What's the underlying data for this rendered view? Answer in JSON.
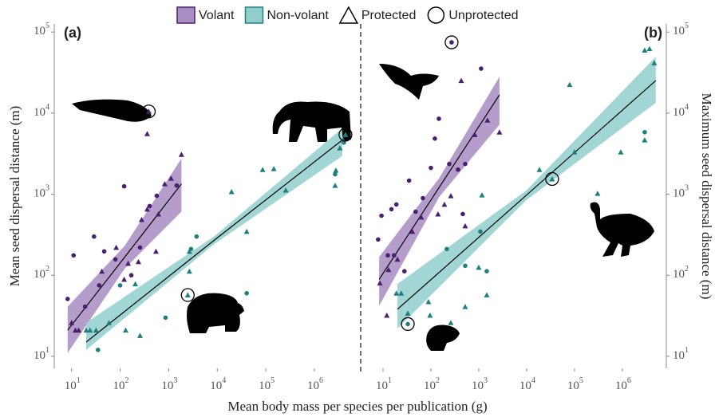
{
  "legend": [
    {
      "name": "Volant",
      "color": "#4b1f6f",
      "ribbon_color": "#a88cc2",
      "kind": "fill"
    },
    {
      "name": "Non-volant",
      "color": "#1f7f80",
      "ribbon_color": "#92cfcc",
      "kind": "fill"
    },
    {
      "name": "Protected",
      "kind": "triangle"
    },
    {
      "name": "Unprotected",
      "kind": "circle"
    }
  ],
  "x_label": "Mean body mass per species per publication (g)",
  "chart_data": [
    {
      "type": "scatter",
      "panel_label": "(a)",
      "y_label": "Mean seed dispersal distance (m)",
      "y_axis_side": "left",
      "x_scale": "log",
      "y_scale": "log",
      "xlim": [
        4.4,
        6900000
      ],
      "ylim": [
        7.1,
        126000
      ],
      "xticks": [
        {
          "value": 10,
          "label": "10",
          "sup": "1"
        },
        {
          "value": 100,
          "label": "10",
          "sup": "2"
        },
        {
          "value": 1000,
          "label": "10",
          "sup": "3"
        },
        {
          "value": 10000,
          "label": "10",
          "sup": "4"
        },
        {
          "value": 100000,
          "label": "10",
          "sup": "5"
        },
        {
          "value": 1000000,
          "label": "10",
          "sup": "6"
        }
      ],
      "yticks": [
        {
          "value": 10,
          "label": "10",
          "sup": "1"
        },
        {
          "value": 100,
          "label": "10",
          "sup": "2"
        },
        {
          "value": 1000,
          "label": "10",
          "sup": "3"
        },
        {
          "value": 10000,
          "label": "10",
          "sup": "4"
        },
        {
          "value": 100000,
          "label": "10",
          "sup": "5"
        }
      ],
      "fits": [
        {
          "color": "#111",
          "ribbon_color": "#a88cc2",
          "x": [
            8.3,
            123,
            1830
          ],
          "y": [
            21,
            166,
            1340
          ],
          "lower": [
            11,
            120,
            610
          ],
          "upper": [
            41,
            229,
            2760
          ]
        },
        {
          "color": "#111",
          "ribbon_color": "#92cfcc",
          "x": [
            20,
            8500,
            3750000
          ],
          "y": [
            15,
            268,
            4650
          ],
          "lower": [
            12,
            240,
            2960
          ],
          "upper": [
            26,
            300,
            6500
          ]
        }
      ],
      "series": [
        {
          "color": "#4b1f6f",
          "marker": "circle",
          "x": [
            8.3,
            11,
            19,
            29,
            37,
            47,
            80,
            121,
            170,
            257,
            405,
            568,
            1460
          ],
          "values": [
            51,
            176,
            41,
            300,
            75,
            197,
            157,
            1250,
            100,
            220,
            713,
            955,
            1280
          ],
          "circled": []
        },
        {
          "color": "#4b1f6f",
          "marker": "triangle",
          "x": [
            10,
            12,
            14,
            42,
            83,
            121,
            146,
            238,
            277,
            361,
            547,
            612,
            828,
            1120,
            1830,
            389,
            361
          ],
          "values": [
            26,
            21,
            21,
            112,
            220,
            89,
            140,
            147,
            485,
            652,
            197,
            569,
            1340,
            1570,
            3090,
            10500,
            5560
          ],
          "circled": [
            15
          ]
        },
        {
          "color": "#1f7f80",
          "marker": "circle",
          "x": [
            35,
            100,
            860,
            2880,
            3750,
            40400,
            2670000,
            4050000
          ],
          "values": [
            12,
            75,
            30,
            211,
            300,
            60,
            1760,
            4330
          ],
          "circled": []
        },
        {
          "color": "#1f7f80",
          "marker": "triangle",
          "x": [
            20,
            24,
            32,
            59,
            130,
            257,
            205,
            2670,
            2670,
            2470,
            19700,
            40400,
            86000,
            146000,
            257000,
            2770000,
            2670000,
            3350000,
            3890000,
            4370000
          ],
          "values": [
            21,
            21,
            21,
            26,
            21,
            18,
            78,
            112,
            197,
            57,
            1070,
            346,
            2010,
            2060,
            1120,
            1970,
            1280,
            3710,
            4650,
            5430
          ],
          "circled": [
            9,
            19
          ]
        }
      ]
    },
    {
      "type": "scatter",
      "panel_label": "(b)",
      "y_label": "Maximum seed dispersal distance (m)",
      "y_axis_side": "right",
      "x_scale": "log",
      "y_scale": "log",
      "xlim": [
        4.3,
        8300000
      ],
      "ylim": [
        7.1,
        126000
      ],
      "xticks": [
        {
          "value": 10,
          "label": "10",
          "sup": "1"
        },
        {
          "value": 100,
          "label": "10",
          "sup": "2"
        },
        {
          "value": 1000,
          "label": "10",
          "sup": "3"
        },
        {
          "value": 10000,
          "label": "10",
          "sup": "4"
        },
        {
          "value": 100000,
          "label": "10",
          "sup": "5"
        },
        {
          "value": 1000000,
          "label": "10",
          "sup": "6"
        }
      ],
      "yticks": [
        {
          "value": 10,
          "label": "10",
          "sup": "1"
        },
        {
          "value": 100,
          "label": "10",
          "sup": "2"
        },
        {
          "value": 1000,
          "label": "10",
          "sup": "3"
        },
        {
          "value": 10000,
          "label": "10",
          "sup": "4"
        },
        {
          "value": 100000,
          "label": "10",
          "sup": "5"
        }
      ],
      "fits": [
        {
          "color": "#111",
          "ribbon_color": "#a88cc2",
          "x": [
            8.3,
            150,
            2710
          ],
          "y": [
            89,
            1220,
            16800
          ],
          "lower": [
            42,
            930,
            7200
          ],
          "upper": [
            168,
            1590,
            28200
          ]
        },
        {
          "color": "#111",
          "ribbon_color": "#92cfcc",
          "x": [
            20,
            10000,
            5000000
          ],
          "y": [
            38,
            977,
            25200
          ],
          "lower": [
            22,
            850,
            13400
          ],
          "upper": [
            78,
            1120,
            49700
          ]
        }
      ],
      "series": [
        {
          "color": "#4b1f6f",
          "marker": "circle",
          "x": [
            7.9,
            9.3,
            15,
            19,
            35,
            48,
            68,
            100,
            121,
            147,
            242,
            369,
            521,
            1120,
            12.6,
            17,
            28,
            271,
            464
          ],
          "values": [
            276,
            543,
            652,
            747,
            1470,
            608,
            893,
            2110,
            4850,
            8530,
            2360,
            2010,
            2360,
            35400,
            176,
            176,
            112,
            74700,
            569
          ],
          "circled": [
            17
          ]
        },
        {
          "color": "#4b1f6f",
          "marker": "triangle",
          "x": [
            8.6,
            13,
            20,
            41,
            63,
            141,
            192,
            261,
            521,
            826,
            1520,
            2710,
            12,
            430
          ],
          "values": [
            80,
            117,
            157,
            346,
            520,
            569,
            747,
            955,
            406,
            5430,
            8170,
            5820,
            32,
            25200
          ],
          "circled": []
        },
        {
          "color": "#1f7f80",
          "marker": "circle",
          "x": [
            33,
            215,
            521,
            1080,
            1470,
            2930000
          ],
          "values": [
            25,
            211,
            131,
            346,
            112,
            5820
          ],
          "circled": [
            0
          ]
        },
        {
          "color": "#1f7f80",
          "marker": "triangle",
          "x": [
            19,
            24,
            33,
            89,
            96,
            261,
            521,
            1170,
            1000,
            1470,
            18500,
            34100,
            79400,
            100000,
            304000,
            927000,
            2930000,
            2930000,
            3690000,
            4640000
          ],
          "values": [
            60,
            60,
            34,
            47,
            32,
            26,
            41,
            977,
            125,
            57,
            2010,
            1540,
            22500,
            3310,
            1020,
            3310,
            4650,
            59600,
            62200,
            41500
          ],
          "circled": [
            11
          ]
        }
      ]
    }
  ]
}
